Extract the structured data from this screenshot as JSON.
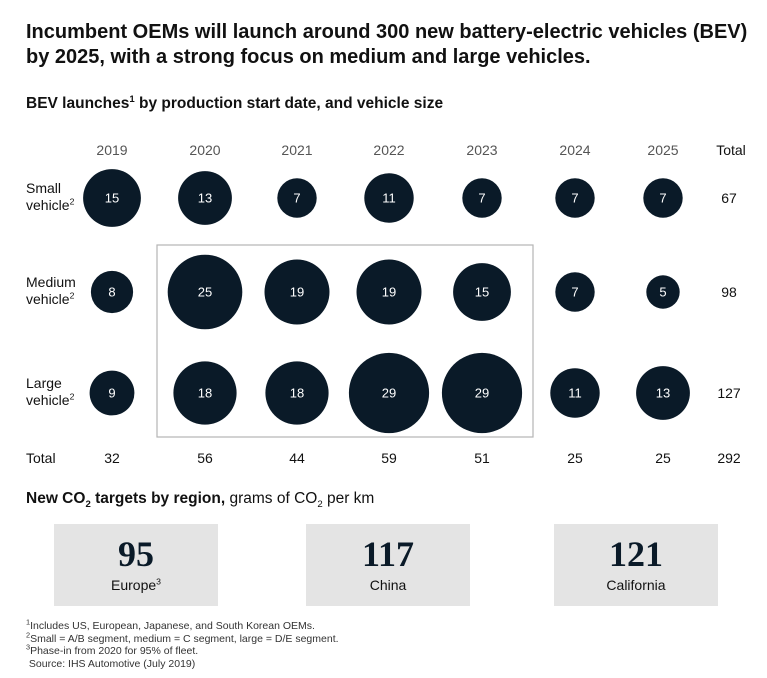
{
  "title": "Incumbent OEMs will launch around 300 new battery-electric vehicles (BEV) by 2025, with a strong focus on medium and large vehicles.",
  "subtitle": {
    "text": "BEV launches",
    "sup": "1",
    "rest": " by production start date, and vehicle size"
  },
  "chart_data": {
    "type": "bubble-matrix",
    "columns": [
      "2019",
      "2020",
      "2021",
      "2022",
      "2023",
      "2024",
      "2025"
    ],
    "total_header": "Total",
    "rows": [
      {
        "label_line1": "Small",
        "label_line2": "vehicle",
        "sup": "2",
        "values": [
          15,
          13,
          7,
          11,
          7,
          7,
          7
        ],
        "total": "67"
      },
      {
        "label_line1": "Medium",
        "label_line2": "vehicle",
        "sup": "2",
        "values": [
          8,
          25,
          19,
          19,
          15,
          7,
          5
        ],
        "total": "98"
      },
      {
        "label_line1": "Large",
        "label_line2": "vehicle",
        "sup": "2",
        "values": [
          9,
          18,
          18,
          29,
          29,
          11,
          13
        ],
        "total": "127"
      }
    ],
    "totals_row": {
      "label": "Total",
      "values": [
        "32",
        "56",
        "44",
        "59",
        "51",
        "25",
        "25"
      ],
      "grand_total": "292"
    },
    "highlight": {
      "columns": [
        "2020",
        "2023"
      ],
      "rows": [
        "Medium",
        "Large"
      ]
    },
    "bubble_color": "#0a1a28",
    "bubble_text_color": "#ffffff",
    "highlight_border_color": "#b5b5b5"
  },
  "co2": {
    "title_bold": "New CO",
    "title_bold_sub": "2",
    "title_bold_end": " targets by region,",
    "title_rest": " grams of CO",
    "title_rest_sub": "2",
    "title_rest_end": " per km",
    "regions": [
      {
        "value": "95",
        "label": "Europe",
        "sup": "3"
      },
      {
        "value": "117",
        "label": "China",
        "sup": ""
      },
      {
        "value": "121",
        "label": "California",
        "sup": ""
      }
    ],
    "box_color": "#e4e4e4"
  },
  "footnotes": [
    {
      "sup": "1",
      "text": "Includes US, European, Japanese, and South Korean OEMs."
    },
    {
      "sup": "2",
      "text": "Small = A/B segment, medium = C segment, large = D/E segment."
    },
    {
      "sup": "3",
      "text": "Phase-in from 2020 for 95% of fleet."
    },
    {
      "sup": "",
      "text": "Source: IHS Automotive (July 2019)"
    }
  ]
}
